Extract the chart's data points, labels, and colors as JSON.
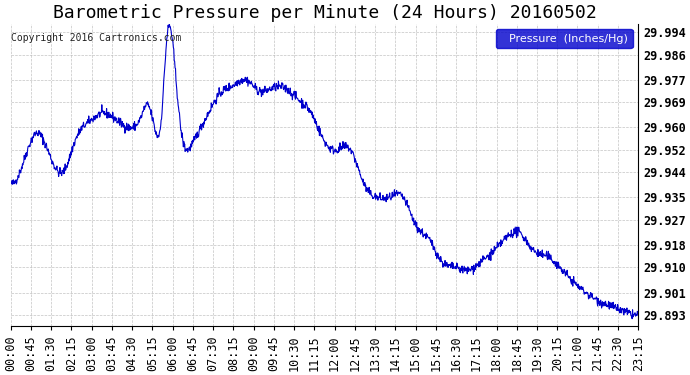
{
  "title": "Barometric Pressure per Minute (24 Hours) 20160502",
  "copyright": "Copyright 2016 Cartronics.com",
  "legend_label": "Pressure  (Inches/Hg)",
  "yticks": [
    29.893,
    29.901,
    29.91,
    29.918,
    29.927,
    29.935,
    29.944,
    29.952,
    29.96,
    29.969,
    29.977,
    29.986,
    29.994
  ],
  "ylim": [
    29.889,
    29.997
  ],
  "xtick_labels": [
    "00:00",
    "00:45",
    "01:30",
    "02:15",
    "03:00",
    "03:45",
    "04:30",
    "05:15",
    "06:00",
    "06:45",
    "07:30",
    "08:15",
    "09:00",
    "09:45",
    "10:30",
    "11:15",
    "12:00",
    "12:45",
    "13:30",
    "14:15",
    "15:00",
    "15:45",
    "16:30",
    "17:15",
    "18:00",
    "18:45",
    "19:30",
    "20:15",
    "21:00",
    "21:45",
    "22:30",
    "23:15"
  ],
  "line_color": "#0000cc",
  "background_color": "#ffffff",
  "grid_color": "#aaaaaa",
  "title_fontsize": 13,
  "tick_fontsize": 8.5,
  "legend_bg": "#0000cc",
  "legend_fg": "#ffffff"
}
